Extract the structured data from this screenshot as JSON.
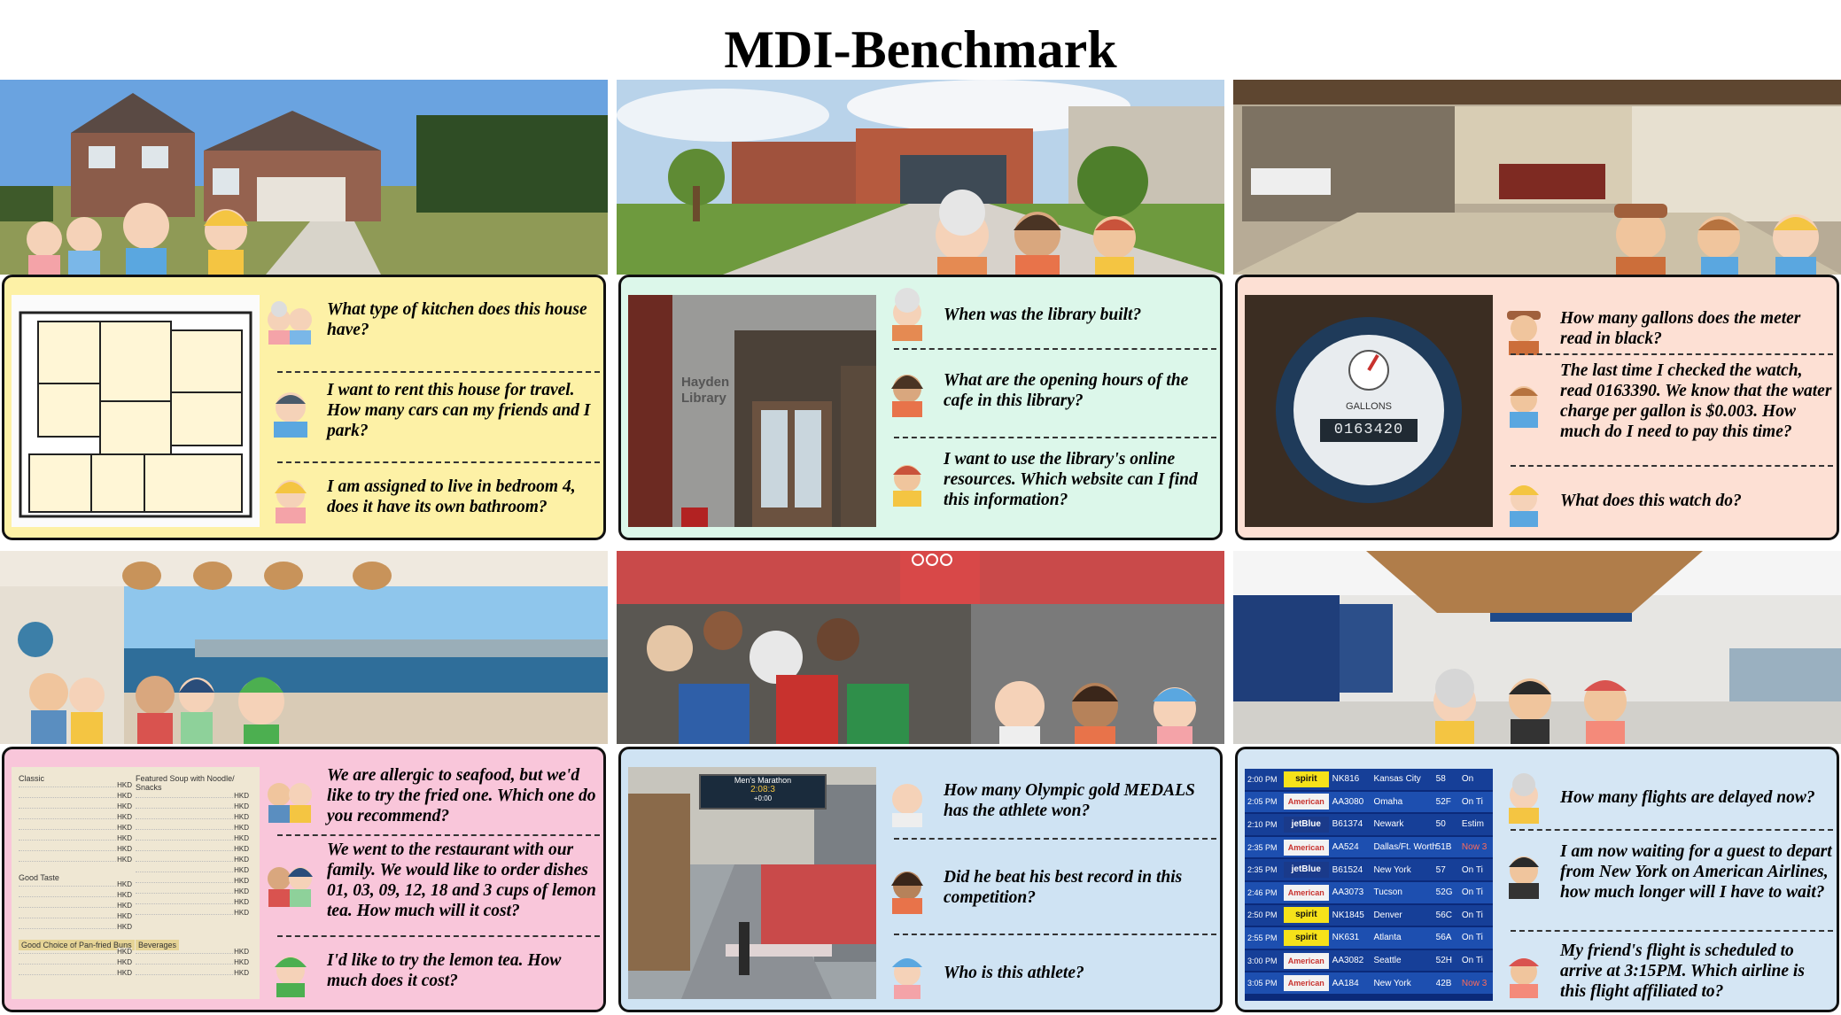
{
  "title": "MDI-Benchmark",
  "colors": {
    "panel_yellow": "#fdf1a6",
    "panel_green": "#dcf7ea",
    "panel_peach": "#fde0d4",
    "panel_pink": "#f9c6da",
    "panel_blue": "#cfe3f3",
    "panel_lightblue": "#d5e6f4"
  },
  "panels": [
    {
      "scene": "house exterior",
      "thumb": "floor plan",
      "questions": [
        "What type of kitchen does this house have?",
        "I want to rent this house for travel. How many cars can my friends and I park?",
        "I am assigned to live in bedroom 4, does it have its own bathroom?"
      ]
    },
    {
      "scene": "campus library",
      "thumb": "library entrance",
      "thumb_sign": "Hayden Library",
      "questions": [
        "When was the library built?",
        "What are the opening hours of the cafe in this library?",
        "I want to use the library's online resources. Which website can I find this information?"
      ]
    },
    {
      "scene": "basement",
      "thumb": "water meter",
      "thumb_label": "GALLONS",
      "thumb_reading": "0163420",
      "questions": [
        "How many gallons does the meter read in black?",
        "The last time I checked the watch, read 0163390. We know that the water charge per gallon is $0.003. How much do I need to pay this time?",
        "What does this watch do?"
      ]
    },
    {
      "scene": "seaside restaurant",
      "thumb": "menu",
      "menu_headings": [
        "Classic",
        "Featured Soup with Noodle/ Snacks",
        "Good Taste",
        "Good Choice of Pan-fried Buns",
        "Beverages"
      ],
      "menu_price": "HKD",
      "questions": [
        "We are allergic to seafood, but we'd like to try the fried one. Which one do you recommend?",
        "We went to the restaurant with our family. We would like to order dishes 01, 03, 09, 12, 18 and 3 cups of lemon tea. How much will it cost?",
        "I'd like to try the lemon tea. How much does it cost?"
      ]
    },
    {
      "scene": "olympic marathon",
      "thumb": "marathon finish",
      "scoreboard": [
        "Men's Marathon",
        "2:08:3",
        "+0:00"
      ],
      "questions": [
        "How many Olympic gold MEDALS has the athlete won?",
        "Did he beat his best record in this competition?",
        "Who is this athlete?"
      ]
    },
    {
      "scene": "airport terminal",
      "thumb": "flight board",
      "flights": [
        {
          "time": "2:00 PM",
          "airline": "spirit",
          "flight": "NK816",
          "city": "Kansas City",
          "gate": "58",
          "status": "On"
        },
        {
          "time": "2:05 PM",
          "airline": "American",
          "flight": "AA3080",
          "city": "Omaha",
          "gate": "52F",
          "status": "On Ti"
        },
        {
          "time": "2:10 PM",
          "airline": "jetBlue",
          "flight": "B61374",
          "city": "Newark",
          "gate": "50",
          "status": "Estim"
        },
        {
          "time": "2:35 PM",
          "airline": "American",
          "flight": "AA524",
          "city": "Dallas/Ft. Worth",
          "gate": "51B",
          "status": "Now 3"
        },
        {
          "time": "2:35 PM",
          "airline": "jetBlue",
          "flight": "B61524",
          "city": "New York",
          "gate": "57",
          "status": "On Ti"
        },
        {
          "time": "2:46 PM",
          "airline": "American",
          "flight": "AA3073",
          "city": "Tucson",
          "gate": "52G",
          "status": "On Ti"
        },
        {
          "time": "2:50 PM",
          "airline": "spirit",
          "flight": "NK1845",
          "city": "Denver",
          "gate": "56C",
          "status": "On Ti"
        },
        {
          "time": "2:55 PM",
          "airline": "spirit",
          "flight": "NK631",
          "city": "Atlanta",
          "gate": "56A",
          "status": "On Ti"
        },
        {
          "time": "3:00 PM",
          "airline": "American",
          "flight": "AA3082",
          "city": "Seattle",
          "gate": "52H",
          "status": "On Ti"
        },
        {
          "time": "3:05 PM",
          "airline": "American",
          "flight": "AA184",
          "city": "New York",
          "gate": "42B",
          "status": "Now 3"
        }
      ],
      "questions": [
        "How many flights are delayed now?",
        "I am now waiting for a guest to depart from New York on American Airlines, how much longer will I have to wait?",
        "My friend's flight is scheduled to arrive at 3:15PM. Which airline is this flight affiliated to?"
      ]
    }
  ]
}
